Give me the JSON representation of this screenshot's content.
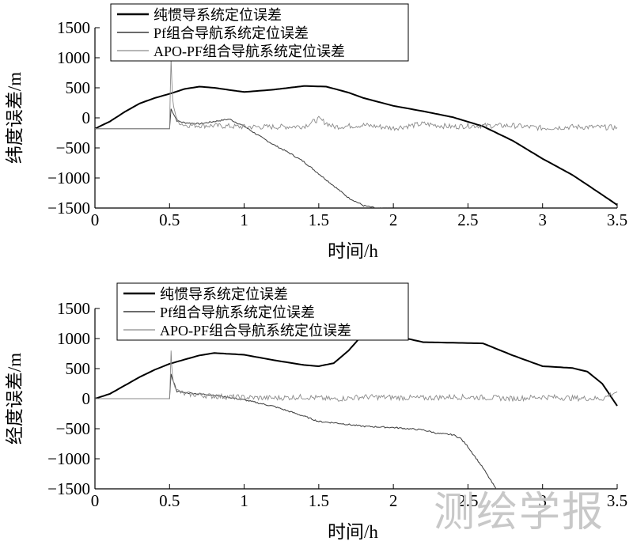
{
  "watermark": "测绘学报",
  "chart_data": [
    {
      "type": "line",
      "xlabel": "时间/h",
      "ylabel": "纬度误差/m",
      "xlim": [
        0,
        3.5
      ],
      "ylim": [
        -1500,
        1500
      ],
      "xticks": [
        "0",
        "0.5",
        "1",
        "1.5",
        "2",
        "2.5",
        "3",
        "3.5"
      ],
      "yticks": [
        "1500",
        "1000",
        "500",
        "0",
        "−500",
        "−1000",
        "−1500"
      ],
      "legend_position": "top-left",
      "grid": false,
      "series": [
        {
          "name": "纯惯导系统定位误差",
          "x": [
            0,
            0.1,
            0.2,
            0.3,
            0.4,
            0.5,
            0.6,
            0.7,
            0.8,
            1.0,
            1.2,
            1.4,
            1.55,
            1.7,
            1.8,
            2.0,
            2.2,
            2.4,
            2.6,
            2.8,
            3.0,
            3.2,
            3.4,
            3.5
          ],
          "values": [
            -180,
            -60,
            100,
            240,
            330,
            400,
            480,
            520,
            500,
            430,
            470,
            530,
            520,
            420,
            330,
            200,
            110,
            10,
            -140,
            -380,
            -680,
            -950,
            -1280,
            -1450
          ]
        },
        {
          "name": "Pf组合导航系统定位误差",
          "x": [
            0,
            0.5,
            0.51,
            0.55,
            0.6,
            0.7,
            0.8,
            0.9,
            1.0,
            1.1,
            1.2,
            1.3,
            1.4,
            1.5,
            1.6,
            1.7,
            1.8,
            1.9,
            2.0,
            2.1,
            2.2
          ],
          "values": [
            -180,
            -180,
            150,
            -50,
            -80,
            -100,
            -60,
            -20,
            -140,
            -300,
            -450,
            -580,
            -730,
            -930,
            -1130,
            -1330,
            -1460,
            -1510,
            -1520,
            -1560,
            -1650
          ]
        },
        {
          "name": "APO-PF组合导航系统定位误差",
          "x": [
            0,
            0.5,
            0.51,
            0.52,
            0.55,
            0.6,
            0.8,
            1.0,
            1.2,
            1.4,
            1.5,
            1.6,
            1.8,
            2.0,
            2.2,
            2.4,
            2.5,
            2.6,
            2.8,
            3.0,
            3.2,
            3.5
          ],
          "values": [
            -180,
            -180,
            980,
            300,
            -50,
            -120,
            -130,
            -150,
            -150,
            -140,
            -20,
            -150,
            -120,
            -170,
            -100,
            -150,
            -130,
            -130,
            -130,
            -170,
            -150,
            -160
          ]
        }
      ]
    },
    {
      "type": "line",
      "xlabel": "时间/h",
      "ylabel": "经度误差/m",
      "xlim": [
        0,
        3.5
      ],
      "ylim": [
        -1500,
        1500
      ],
      "xticks": [
        "0",
        "0.5",
        "1",
        "1.5",
        "2",
        "2.5",
        "3",
        "3.5"
      ],
      "yticks": [
        "1500",
        "1000",
        "500",
        "0",
        "−500",
        "−1000",
        "−1500"
      ],
      "legend_position": "top-left",
      "grid": false,
      "series": [
        {
          "name": "纯惯导系统定位误差",
          "x": [
            0,
            0.1,
            0.2,
            0.3,
            0.4,
            0.5,
            0.6,
            0.7,
            0.8,
            1.0,
            1.2,
            1.4,
            1.5,
            1.6,
            1.7,
            1.8,
            2.0,
            2.2,
            2.4,
            2.6,
            2.8,
            3.0,
            3.2,
            3.3,
            3.4,
            3.5
          ],
          "values": [
            0,
            80,
            220,
            360,
            480,
            580,
            650,
            720,
            760,
            730,
            640,
            560,
            540,
            590,
            800,
            1080,
            1050,
            940,
            930,
            920,
            720,
            540,
            510,
            450,
            250,
            -120
          ]
        },
        {
          "name": "Pf组合导航系统定位误差",
          "x": [
            0,
            0.5,
            0.51,
            0.55,
            0.6,
            0.8,
            1.0,
            1.2,
            1.4,
            1.5,
            1.6,
            1.8,
            2.0,
            2.2,
            2.3,
            2.4,
            2.45,
            2.5,
            2.6,
            2.7
          ],
          "values": [
            0,
            0,
            400,
            120,
            100,
            60,
            -20,
            -130,
            -290,
            -380,
            -400,
            -460,
            -480,
            -520,
            -580,
            -600,
            -660,
            -800,
            -1150,
            -1550
          ]
        },
        {
          "name": "APO-PF组合导航系统定位误差",
          "x": [
            0,
            0.5,
            0.51,
            0.52,
            0.55,
            0.6,
            0.8,
            1.0,
            1.2,
            1.4,
            1.6,
            1.8,
            2.0,
            2.2,
            2.4,
            2.6,
            2.8,
            3.0,
            3.2,
            3.4,
            3.5
          ],
          "values": [
            0,
            0,
            760,
            350,
            130,
            80,
            40,
            20,
            10,
            30,
            -10,
            30,
            20,
            10,
            30,
            20,
            0,
            30,
            10,
            0,
            120
          ]
        }
      ]
    }
  ]
}
